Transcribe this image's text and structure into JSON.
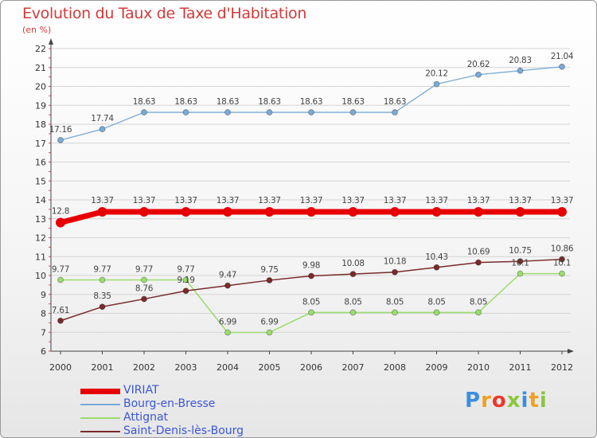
{
  "chart_data": {
    "type": "line",
    "title": "Evolution du Taux de Taxe d'Habitation",
    "subtitle": "(en %)",
    "xlabel": "",
    "ylabel": "",
    "categories": [
      "2000",
      "2001",
      "2002",
      "2003",
      "2004",
      "2005",
      "2006",
      "2007",
      "2008",
      "2009",
      "2010",
      "2011",
      "2012"
    ],
    "y_ticks": [
      "6",
      "7",
      "8",
      "9",
      "10",
      "11",
      "12",
      "13",
      "14",
      "15",
      "16",
      "17",
      "18",
      "19",
      "20",
      "21",
      "22"
    ],
    "ylim": [
      6,
      22
    ],
    "grid": "horizontal",
    "legend_position": "bottom-left",
    "series": [
      {
        "name": "VIRIAT",
        "color": "#e60000",
        "values": [
          12.8,
          13.37,
          13.37,
          13.37,
          13.37,
          13.37,
          13.37,
          13.37,
          13.37,
          13.37,
          13.37,
          13.37,
          13.37
        ],
        "labels": [
          "12.8",
          "13.37",
          "13.37",
          "13.37",
          "13.37",
          "13.37",
          "13.37",
          "13.37",
          "13.37",
          "13.37",
          "13.37",
          "13.37",
          "13.37"
        ]
      },
      {
        "name": "Bourg-en-Bresse",
        "color": "#7aaad6",
        "values": [
          17.16,
          17.74,
          18.63,
          18.63,
          18.63,
          18.63,
          18.63,
          18.63,
          18.63,
          20.12,
          20.62,
          20.83,
          21.04
        ],
        "labels": [
          "17.16",
          "17.74",
          "18.63",
          "18.63",
          "18.63",
          "18.63",
          "18.63",
          "18.63",
          "18.63",
          "20.12",
          "20.62",
          "20.83",
          "21.04"
        ]
      },
      {
        "name": "Attignat",
        "color": "#9bdc6e",
        "values": [
          9.77,
          9.77,
          9.77,
          9.77,
          6.99,
          6.99,
          8.05,
          8.05,
          8.05,
          8.05,
          8.05,
          10.1,
          10.1
        ],
        "labels": [
          "9.77",
          "9.77",
          "9.77",
          "9.77",
          "6.99",
          "6.99",
          "8.05",
          "8.05",
          "8.05",
          "8.05",
          "8.05",
          "10.1",
          "10.1"
        ]
      },
      {
        "name": "Saint-Denis-lès-Bourg",
        "color": "#7a2a2a",
        "values": [
          7.61,
          8.35,
          8.76,
          9.19,
          9.47,
          9.75,
          9.98,
          10.08,
          10.18,
          10.43,
          10.69,
          10.75,
          10.86
        ],
        "labels": [
          "7.61",
          "8.35",
          "8.76",
          "9.19",
          "9.47",
          "9.75",
          "9.98",
          "10.08",
          "10.18",
          "10.43",
          "10.69",
          "10.75",
          "10.86"
        ]
      }
    ]
  },
  "brand": {
    "letters": [
      {
        "char": "P",
        "color": "#3a8ee0"
      },
      {
        "char": "r",
        "color": "#f0a020"
      },
      {
        "char": "o",
        "color": "#e83a2a"
      },
      {
        "char": "x",
        "color": "#8cc63f"
      },
      {
        "char": "i",
        "color": "#3a8ee0"
      },
      {
        "char": "t",
        "color": "#f0a020"
      },
      {
        "char": "i",
        "color": "#8cc63f"
      }
    ]
  }
}
